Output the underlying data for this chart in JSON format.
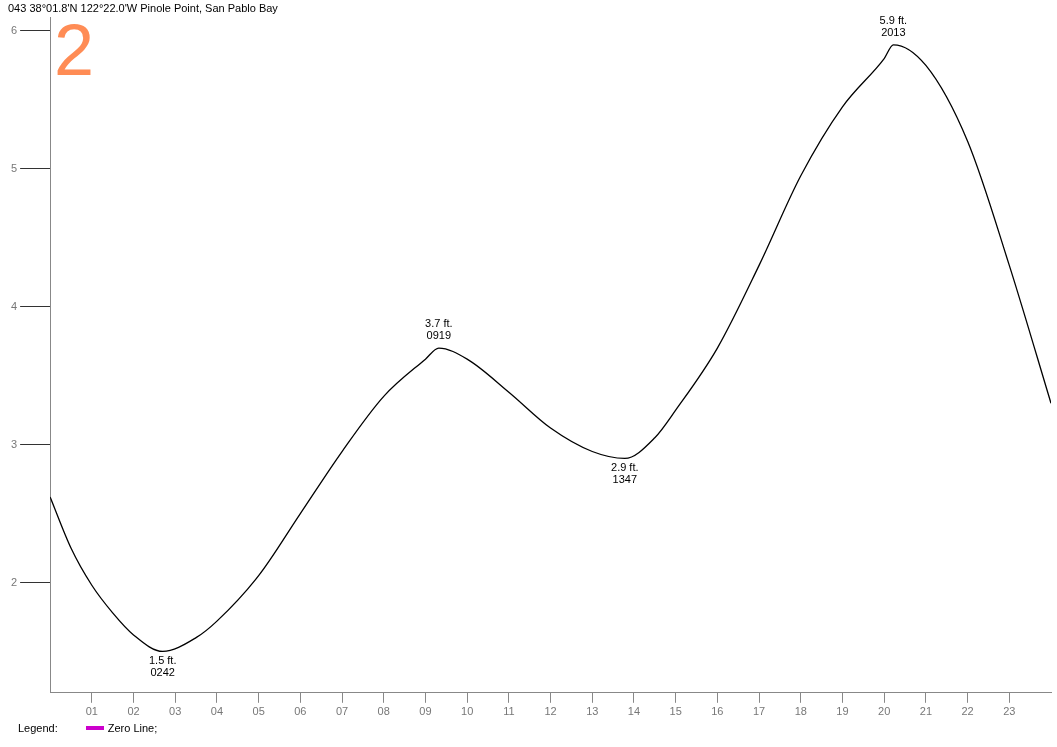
{
  "chart_data": {
    "type": "line",
    "subtitle": "043 38°01.8'N 122°22.0'W Pinole Point, San Pablo Bay",
    "legend_title": "Legend:",
    "x": [
      0,
      0.5,
      1,
      1.5,
      2,
      2.7,
      3.5,
      4,
      5,
      6,
      7,
      8,
      9,
      9.32,
      10,
      11,
      12,
      13,
      13.78,
      14.5,
      15,
      16,
      17,
      18,
      19,
      20,
      20.22,
      21,
      22,
      23,
      24
    ],
    "series": [
      {
        "color": "#000000",
        "values": [
          2.62,
          2.25,
          1.98,
          1.78,
          1.62,
          1.5,
          1.6,
          1.72,
          2.05,
          2.5,
          2.95,
          3.35,
          3.62,
          3.7,
          3.62,
          3.38,
          3.12,
          2.95,
          2.9,
          3.05,
          3.25,
          3.7,
          4.3,
          4.95,
          5.45,
          5.8,
          5.9,
          5.75,
          5.2,
          4.3,
          3.3
        ]
      },
      {
        "name": "Zero Line;",
        "color": "#cc00cc",
        "values": [
          null,
          null,
          null,
          null,
          null,
          null,
          null,
          null,
          null,
          null,
          null,
          null,
          null,
          null,
          null,
          null,
          null,
          null,
          null,
          null,
          null,
          null,
          null,
          null,
          null,
          null,
          null,
          null,
          null,
          null,
          null
        ]
      }
    ],
    "xlim": [
      0,
      24
    ],
    "xticks": [
      {
        "value": 1,
        "label": "01"
      },
      {
        "value": 2,
        "label": "02"
      },
      {
        "value": 3,
        "label": "03"
      },
      {
        "value": 4,
        "label": "04"
      },
      {
        "value": 5,
        "label": "05"
      },
      {
        "value": 6,
        "label": "06"
      },
      {
        "value": 7,
        "label": "07"
      },
      {
        "value": 8,
        "label": "08"
      },
      {
        "value": 9,
        "label": "09"
      },
      {
        "value": 10,
        "label": "10"
      },
      {
        "value": 11,
        "label": "11"
      },
      {
        "value": 12,
        "label": "12"
      },
      {
        "value": 13,
        "label": "13"
      },
      {
        "value": 14,
        "label": "14"
      },
      {
        "value": 15,
        "label": "15"
      },
      {
        "value": 16,
        "label": "16"
      },
      {
        "value": 17,
        "label": "17"
      },
      {
        "value": 18,
        "label": "18"
      },
      {
        "value": 19,
        "label": "19"
      },
      {
        "value": 20,
        "label": "20"
      },
      {
        "value": 21,
        "label": "21"
      },
      {
        "value": 22,
        "label": "22"
      },
      {
        "value": 23,
        "label": "23"
      }
    ],
    "ylim": [
      1.2,
      6.1
    ],
    "yticks": [
      2,
      3,
      4,
      5,
      6
    ],
    "annotations": [
      "2",
      {
        "text": "1.5 ft.\n0242",
        "x": 2.7,
        "y": 1.5
      },
      {
        "text": "3.7 ft.\n0919",
        "x": 9.32,
        "y": 3.7
      },
      {
        "text": "2.9 ft.\n1347",
        "x": 13.78,
        "y": 2.9
      },
      {
        "text": "5.9 ft.\n2013",
        "x": 20.22,
        "y": 5.9
      }
    ],
    "grid": false,
    "legend": "bottom left",
    "marker": "none",
    "line_style": "solid"
  }
}
